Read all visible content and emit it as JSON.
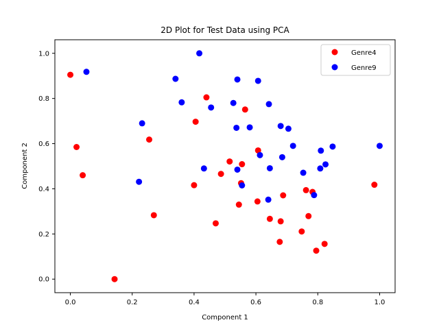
{
  "chart_data": {
    "type": "scatter",
    "title": "2D Plot for Test Data using PCA",
    "xlabel": "Component 1",
    "ylabel": "Component 2",
    "xlim": [
      -0.05,
      1.05
    ],
    "ylim": [
      -0.06,
      1.06
    ],
    "xticks": [
      "0.0",
      "0.2",
      "0.4",
      "0.6",
      "0.8",
      "1.0"
    ],
    "yticks": [
      "0.0",
      "0.2",
      "0.4",
      "0.6",
      "0.8",
      "1.0"
    ],
    "grid": false,
    "legend_position": "top-right",
    "series": [
      {
        "name": "Genre4",
        "color": "#ff0000",
        "points": [
          [
            0.0,
            0.905
          ],
          [
            0.02,
            0.585
          ],
          [
            0.04,
            0.46
          ],
          [
            0.143,
            0.0
          ],
          [
            0.255,
            0.618
          ],
          [
            0.27,
            0.283
          ],
          [
            0.4,
            0.416
          ],
          [
            0.405,
            0.697
          ],
          [
            0.44,
            0.805
          ],
          [
            0.47,
            0.247
          ],
          [
            0.487,
            0.466
          ],
          [
            0.515,
            0.521
          ],
          [
            0.545,
            0.33
          ],
          [
            0.552,
            0.425
          ],
          [
            0.555,
            0.509
          ],
          [
            0.565,
            0.751
          ],
          [
            0.605,
            0.344
          ],
          [
            0.607,
            0.57
          ],
          [
            0.645,
            0.267
          ],
          [
            0.677,
            0.165
          ],
          [
            0.68,
            0.256
          ],
          [
            0.688,
            0.371
          ],
          [
            0.748,
            0.211
          ],
          [
            0.762,
            0.394
          ],
          [
            0.77,
            0.279
          ],
          [
            0.783,
            0.386
          ],
          [
            0.795,
            0.126
          ],
          [
            0.822,
            0.156
          ],
          [
            0.983,
            0.418
          ]
        ]
      },
      {
        "name": "Genre9",
        "color": "#0000ff",
        "points": [
          [
            0.052,
            0.918
          ],
          [
            0.222,
            0.431
          ],
          [
            0.232,
            0.69
          ],
          [
            0.34,
            0.887
          ],
          [
            0.36,
            0.783
          ],
          [
            0.417,
            1.0
          ],
          [
            0.432,
            0.49
          ],
          [
            0.455,
            0.76
          ],
          [
            0.527,
            0.78
          ],
          [
            0.537,
            0.67
          ],
          [
            0.54,
            0.884
          ],
          [
            0.54,
            0.485
          ],
          [
            0.555,
            0.415
          ],
          [
            0.58,
            0.672
          ],
          [
            0.607,
            0.878
          ],
          [
            0.613,
            0.549
          ],
          [
            0.64,
            0.352
          ],
          [
            0.642,
            0.775
          ],
          [
            0.645,
            0.491
          ],
          [
            0.68,
            0.678
          ],
          [
            0.685,
            0.54
          ],
          [
            0.705,
            0.666
          ],
          [
            0.72,
            0.59
          ],
          [
            0.753,
            0.471
          ],
          [
            0.788,
            0.372
          ],
          [
            0.808,
            0.49
          ],
          [
            0.81,
            0.569
          ],
          [
            0.825,
            0.508
          ],
          [
            0.848,
            0.587
          ],
          [
            1.0,
            0.59
          ]
        ]
      }
    ]
  }
}
